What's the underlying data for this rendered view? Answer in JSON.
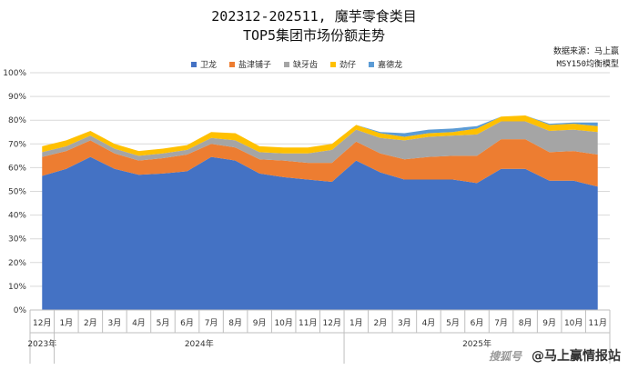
{
  "chart_data": {
    "type": "area",
    "stacked": true,
    "title": "202312-202511, 魔芋零食类目",
    "subtitle": "TOP5集团市场份额走势",
    "source_line1": "数据来源：马上赢",
    "source_line2": "MSY150均衡模型",
    "x": [
      "12月",
      "1月",
      "2月",
      "3月",
      "4月",
      "5月",
      "6月",
      "7月",
      "8月",
      "9月",
      "10月",
      "11月",
      "12月",
      "1月",
      "2月",
      "3月",
      "4月",
      "5月",
      "6月",
      "7月",
      "8月",
      "9月",
      "10月",
      "11月"
    ],
    "year_groups": [
      {
        "label": "2023年",
        "start": 0,
        "end": 0
      },
      {
        "label": "2024年",
        "start": 1,
        "end": 12
      },
      {
        "label": "2025年",
        "start": 13,
        "end": 23
      }
    ],
    "ylim": [
      0,
      100
    ],
    "yticks": [
      0,
      10,
      20,
      30,
      40,
      50,
      60,
      70,
      80,
      90,
      100
    ],
    "ytick_suffix": "%",
    "grid": true,
    "legend_position": "top",
    "series": [
      {
        "name": "卫龙",
        "color": "#4472C4",
        "values": [
          56.5,
          59.5,
          64.5,
          59.5,
          57,
          57.5,
          58.5,
          64.5,
          63,
          57.5,
          56,
          55,
          54,
          63,
          58,
          55,
          55,
          55,
          53.5,
          59.5,
          59.5,
          54.5,
          54.5,
          52
        ]
      },
      {
        "name": "盐津铺子",
        "color": "#ED7D31",
        "values": [
          8,
          7.5,
          7,
          6.5,
          6,
          6.5,
          7,
          5.5,
          5.5,
          6,
          7,
          7,
          8,
          8,
          8,
          8.5,
          9.5,
          10,
          11.5,
          12.5,
          12.5,
          12,
          12.5,
          13.5
        ]
      },
      {
        "name": "缺牙齿",
        "color": "#A5A5A5",
        "values": [
          2,
          2,
          2,
          2,
          2,
          2,
          2,
          2.5,
          3,
          3,
          3,
          4,
          5.5,
          5,
          6.5,
          8,
          8.5,
          8.5,
          9,
          7.5,
          7.5,
          9,
          9,
          9.5
        ]
      },
      {
        "name": "劲仔",
        "color": "#FFC000",
        "values": [
          2.5,
          2.5,
          2,
          2,
          2,
          2,
          2,
          2.5,
          3,
          2.5,
          2.5,
          2.5,
          2.5,
          2,
          2,
          1.5,
          1.5,
          1.5,
          2.5,
          2,
          2.5,
          2.5,
          2.5,
          2.5
        ]
      },
      {
        "name": "嘉德龙",
        "color": "#5B9BD5",
        "values": [
          0,
          0,
          0,
          0,
          0,
          0,
          0,
          0,
          0,
          0,
          0,
          0,
          0,
          0,
          0.5,
          1.5,
          1.5,
          1.5,
          1,
          0,
          0,
          0.5,
          0.5,
          1.5
        ]
      }
    ]
  },
  "watermark": {
    "brand": "搜狐号",
    "text": "@马上赢情报站"
  }
}
